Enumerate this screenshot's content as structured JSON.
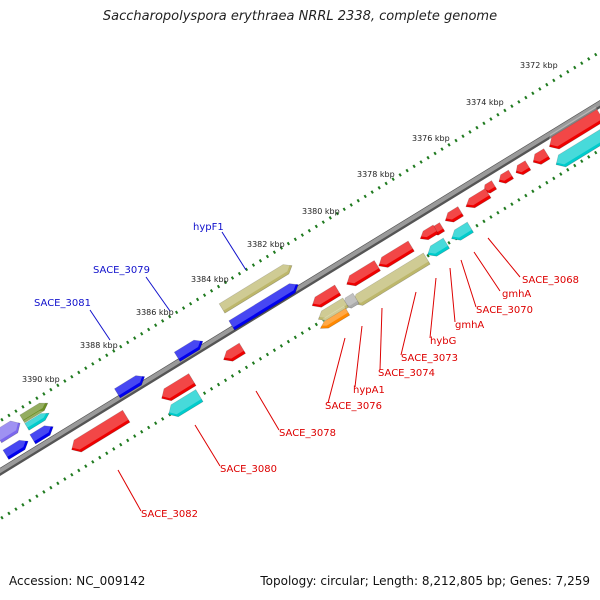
{
  "title": "Saccharopolyspora erythraea NRRL 2338, complete genome",
  "footer": {
    "accession": "Accession: NC_009142",
    "summary": "Topology: circular; Length: 8,212,805 bp; Genes: 7,259"
  },
  "colors": {
    "forward_label": "#1111cc",
    "reverse_label": "#dd0000",
    "backbone": "#808080",
    "tick": "#1f7a1f",
    "cds_red": "#ee0000",
    "cds_blue": "#0000ee",
    "cds_cyan": "#00cccc",
    "cds_khaki": "#bdb76b",
    "cds_orange": "#ff8800",
    "cds_purple": "#7b68ee",
    "cds_olive": "#6b8e23",
    "cds_gray": "#aaaaaa"
  },
  "scale_labels": [
    "3372 kbp",
    "3374 kbp",
    "3376 kbp",
    "3378 kbp",
    "3380 kbp",
    "3382 kbp",
    "3384 kbp",
    "3386 kbp",
    "3388 kbp",
    "3390 kbp"
  ],
  "forward_gene_labels": [
    "hypF1",
    "SACE_3079",
    "SACE_3081"
  ],
  "reverse_gene_labels": [
    "SACE_3068",
    "gmhA",
    "SACE_3070",
    "gmhA",
    "hybG",
    "SACE_3073",
    "SACE_3074",
    "hypA1",
    "SACE_3076",
    "SACE_3078",
    "SACE_3080",
    "SACE_3082"
  ]
}
